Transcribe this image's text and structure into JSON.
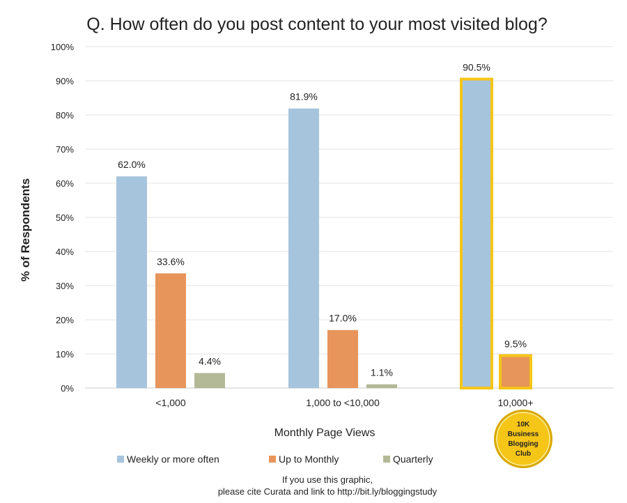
{
  "chart_data": {
    "type": "bar",
    "title": "Q. How often do you post content to your most visited blog?",
    "xlabel": "Monthly Page Views",
    "ylabel": "% of Respondents",
    "ylim": [
      0,
      100
    ],
    "yticks": [
      "0%",
      "10%",
      "20%",
      "30%",
      "40%",
      "50%",
      "60%",
      "70%",
      "80%",
      "90%",
      "100%"
    ],
    "grid": true,
    "legend_position": "bottom-left",
    "categories": [
      "<1,000",
      "1,000 to <10,000",
      "10,000+"
    ],
    "series": [
      {
        "name": "Weekly or more often",
        "color": "#a7c4dd",
        "values": [
          62.0,
          81.9,
          90.5
        ],
        "labels": [
          "62.0%",
          "81.9%",
          "90.5%"
        ]
      },
      {
        "name": "Up to Monthly",
        "color": "#e8955b",
        "values": [
          33.6,
          17.0,
          9.5
        ],
        "labels": [
          "33.6%",
          "17.0%",
          "9.5%"
        ]
      },
      {
        "name": "Quarterly",
        "color": "#b3b997",
        "values": [
          4.4,
          1.1,
          null
        ],
        "labels": [
          "4.4%",
          "1.1%",
          ""
        ]
      }
    ],
    "highlight": {
      "category_index": 2,
      "color": "#f5c518"
    }
  },
  "badge": {
    "line1": "10K",
    "line2": "Business",
    "line3": "Blogging",
    "line4": "Club",
    "color": "#f5c518"
  },
  "footer": {
    "line1": "If you use this graphic,",
    "line2": "please cite Curata and link to http://bit.ly/bloggingstudy"
  }
}
